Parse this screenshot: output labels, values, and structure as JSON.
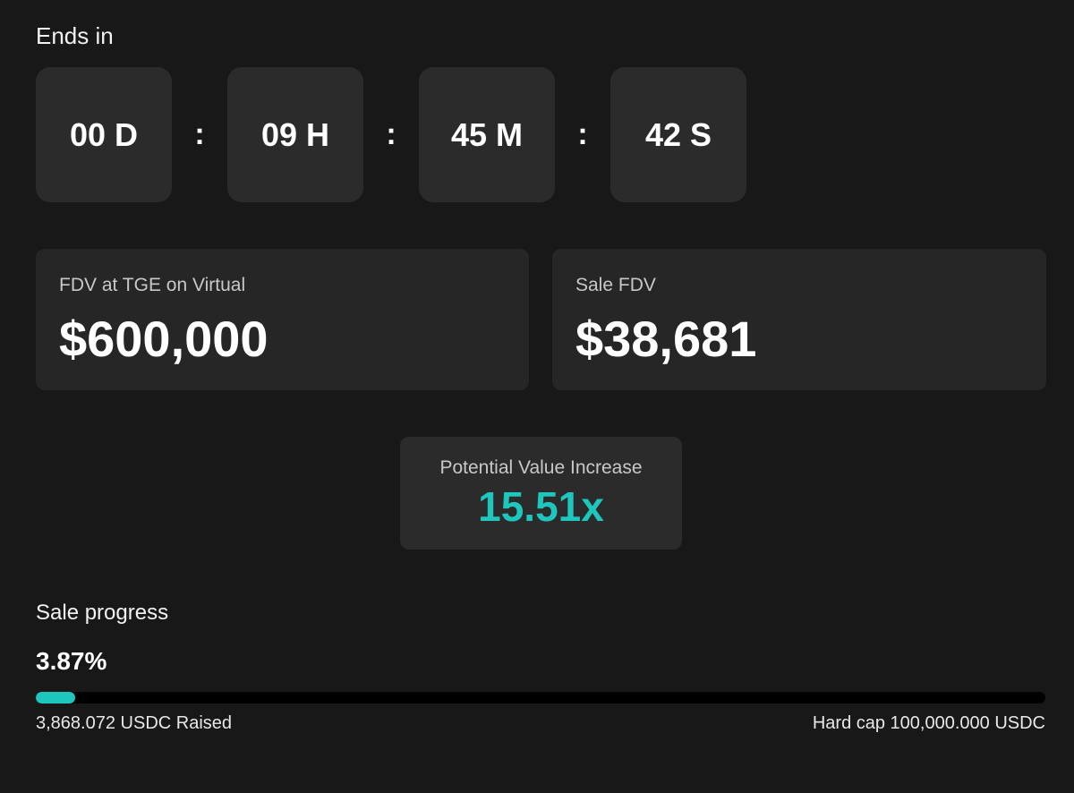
{
  "countdown": {
    "title": "Ends in",
    "days": "00 D",
    "hours": "09 H",
    "minutes": "45 M",
    "seconds": "42 S",
    "separator": ":"
  },
  "fdv_tge": {
    "label": "FDV at TGE on Virtual",
    "value": "$600,000"
  },
  "sale_fdv": {
    "label": "Sale FDV",
    "value": "$38,681"
  },
  "potential_value_increase": {
    "label": "Potential Value Increase",
    "value": "15.51x"
  },
  "sale_progress": {
    "label": "Sale progress",
    "percent_text": "3.87%",
    "percent_value": 3.87,
    "raised_text": "3,868.072 USDC Raised",
    "hard_cap_text": "Hard cap 100,000.000 USDC"
  },
  "colors": {
    "background": "#181818",
    "card": "#262626",
    "accent": "#1ec7bd"
  }
}
